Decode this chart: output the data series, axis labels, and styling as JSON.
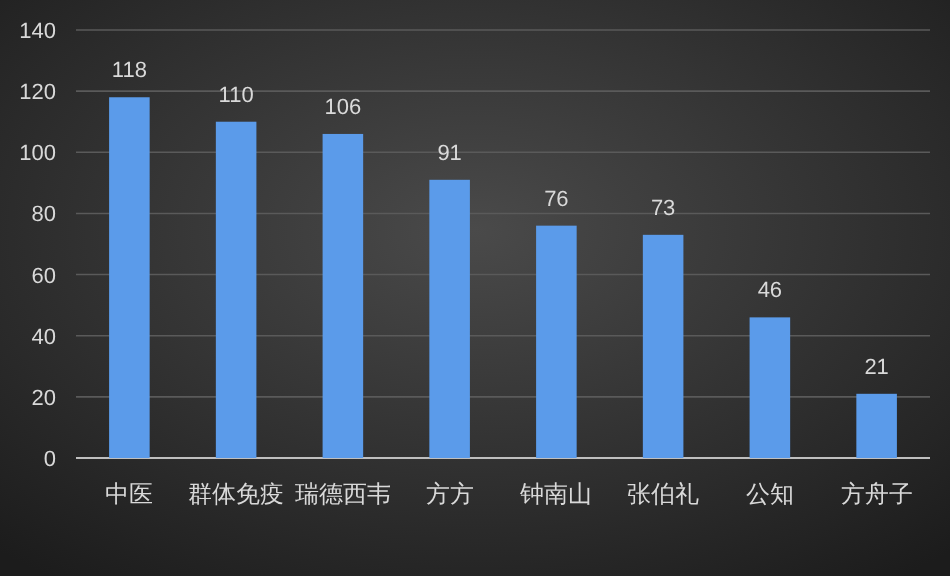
{
  "chart_data": {
    "type": "bar",
    "categories": [
      "中医",
      "群体免疫",
      "瑞德西韦",
      "方方",
      "钟南山",
      "张伯礼",
      "公知",
      "方舟子"
    ],
    "values": [
      118,
      110,
      106,
      91,
      76,
      73,
      46,
      21
    ],
    "color": "#5b9bea",
    "ylim": [
      0,
      140
    ],
    "yticks": [
      0,
      20,
      40,
      60,
      80,
      100,
      120,
      140
    ],
    "grid": "y",
    "data_labels": true
  }
}
